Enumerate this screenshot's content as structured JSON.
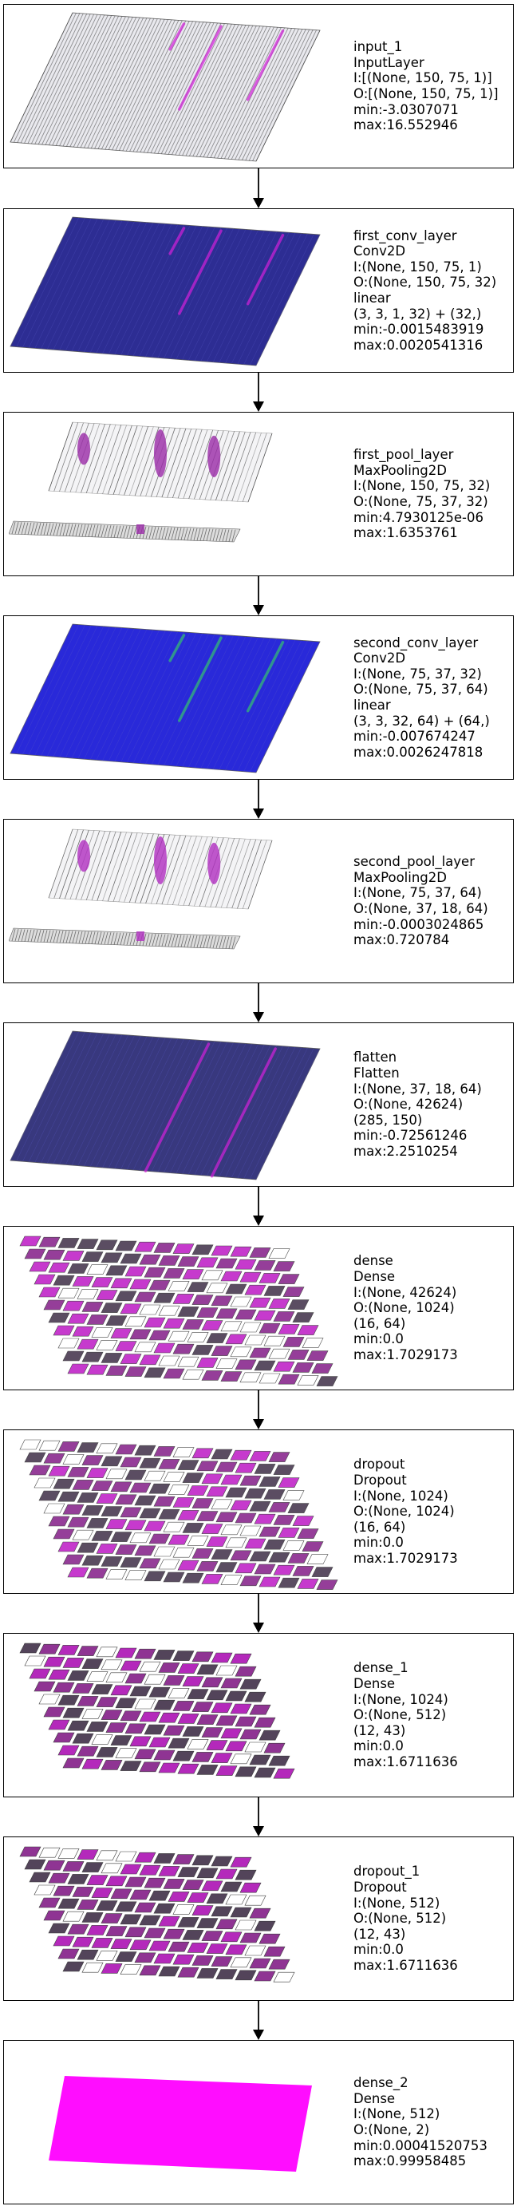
{
  "layers": [
    {
      "id": "input_1",
      "style": "raw",
      "accent": "#7a1e8a",
      "lines": [
        "input_1",
        "InputLayer",
        "I:[(None, 150, 75, 1)]",
        "O:[(None, 150, 75, 1)]",
        "min:-3.0307071",
        "max:16.552946"
      ]
    },
    {
      "id": "first_conv_layer",
      "style": "conv",
      "accent": "#1b1b9a",
      "lines": [
        "first_conv_layer",
        "Conv2D",
        "I:(None, 150, 75, 1)",
        "O:(None, 150, 75, 32)",
        "linear",
        "(3, 3, 1, 32) + (32,)",
        "min:-0.0015483919",
        "max:0.0020541316"
      ]
    },
    {
      "id": "first_pool_layer",
      "style": "pool",
      "accent": "#9a2aa8",
      "lines": [
        "first_pool_layer",
        "MaxPooling2D",
        "I:(None, 150, 75, 32)",
        "O:(None, 75, 37, 32)",
        "min:4.7930125e-06",
        "max:1.6353761"
      ]
    },
    {
      "id": "second_conv_layer",
      "style": "conv2",
      "accent": "#1a1ad0",
      "lines": [
        "second_conv_layer",
        "Conv2D",
        "I:(None, 75, 37, 32)",
        "O:(None, 75, 37, 64)",
        "linear",
        "(3, 3, 32, 64) + (64,)",
        "min:-0.007674247",
        "max:0.0026247818"
      ]
    },
    {
      "id": "second_pool_layer",
      "style": "pool",
      "accent": "#b02ec0",
      "lines": [
        "second_pool_layer",
        "MaxPooling2D",
        "I:(None, 75, 37, 64)",
        "O:(None, 37, 18, 64)",
        "min:-0.0003024865",
        "max:0.720784"
      ]
    },
    {
      "id": "flatten",
      "style": "flat",
      "accent": "#2a2a70",
      "lines": [
        "flatten",
        "Flatten",
        "I:(None, 37, 18, 64)",
        "O:(None, 42624)",
        "(285, 150)",
        "min:-0.72561246",
        "max:2.2510254"
      ]
    },
    {
      "id": "dense",
      "style": "dense",
      "accent": "#c025c8",
      "lines": [
        "dense",
        "Dense",
        "I:(None, 42624)",
        "O:(None, 1024)",
        "(16, 64)",
        "min:0.0",
        "max:1.7029173"
      ]
    },
    {
      "id": "dropout",
      "style": "dense",
      "accent": "#c025c8",
      "lines": [
        "dropout",
        "Dropout",
        "I:(None, 1024)",
        "O:(None, 1024)",
        "(16, 64)",
        "min:0.0",
        "max:1.7029173"
      ]
    },
    {
      "id": "dense_1",
      "style": "dense2",
      "accent": "#b01eb8",
      "lines": [
        "dense_1",
        "Dense",
        "I:(None, 1024)",
        "O:(None, 512)",
        "(12, 43)",
        "min:0.0",
        "max:1.6711636"
      ]
    },
    {
      "id": "dropout_1",
      "style": "dense2",
      "accent": "#b01eb8",
      "lines": [
        "dropout_1",
        "Dropout",
        "I:(None, 512)",
        "O:(None, 512)",
        "(12, 43)",
        "min:0.0",
        "max:1.6711636"
      ]
    },
    {
      "id": "dense_2",
      "style": "solid",
      "accent": "#ff00ff",
      "lines": [
        "dense_2",
        "Dense",
        "I:(None, 512)",
        "O:(None, 2)",
        "min:0.00041520753",
        "max:0.99958485"
      ]
    }
  ]
}
